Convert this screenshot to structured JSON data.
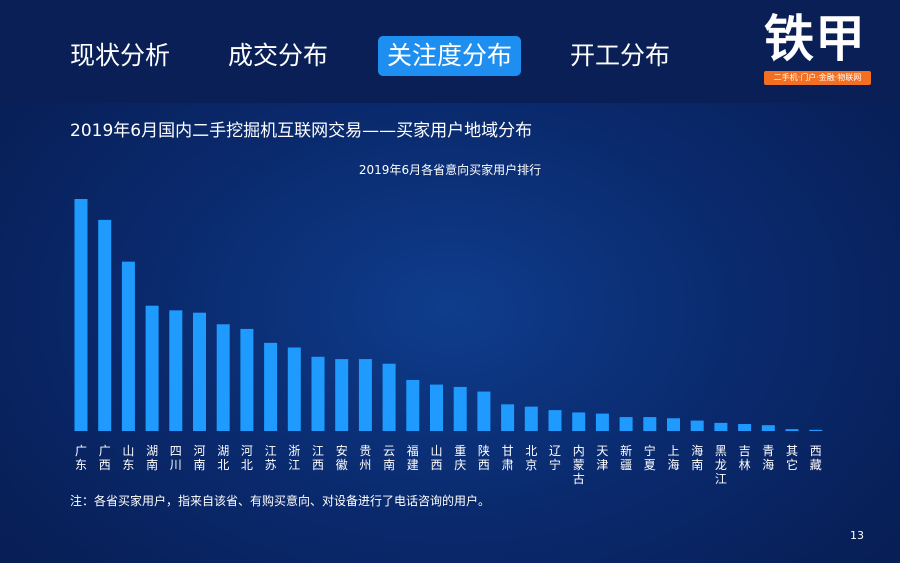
{
  "nav": {
    "tabs": [
      {
        "label": "现状分析"
      },
      {
        "label": "成交分布"
      },
      {
        "label": "关注度分布"
      },
      {
        "label": "开工分布"
      }
    ],
    "active_tab": 2
  },
  "logo": {
    "text": "铁甲",
    "tagline": "二手机·门户·金融·物联网",
    "accent_color": "#f36f21"
  },
  "page": {
    "heading": "2019年6月国内二手挖掘机互联网交易——买家用户地域分布",
    "note": "注：各省买家用户，指来自该省、有购买意向、对设备进行了电话咨询的用户。",
    "page_number": "13"
  },
  "colors": {
    "bar": "#1f9bff",
    "active_tab": "#1e8ff0",
    "background": "#0a2a6e"
  },
  "chart_data": {
    "type": "bar",
    "title": "2019年6月各省意向买家用户排行",
    "categories": [
      "广东",
      "广西",
      "山东",
      "湖南",
      "四川",
      "河南",
      "湖北",
      "河北",
      "江苏",
      "浙江",
      "江西",
      "安徽",
      "贵州",
      "云南",
      "福建",
      "山西",
      "重庆",
      "陕西",
      "甘肃",
      "北京",
      "辽宁",
      "内蒙古",
      "天津",
      "新疆",
      "宁夏",
      "上海",
      "海南",
      "黑龙江",
      "吉林",
      "青海",
      "其它",
      "西藏"
    ],
    "values": [
      100,
      91,
      73,
      54,
      52,
      51,
      46,
      44,
      38,
      36,
      32,
      31,
      31,
      29,
      22,
      20,
      19,
      17,
      11.5,
      10.5,
      9,
      8,
      7.5,
      6,
      6,
      5.5,
      4.5,
      3.5,
      3,
      2.5,
      0.8,
      0.5
    ],
    "ylim": [
      0,
      100
    ],
    "grid": false,
    "legend": "none",
    "xlabel": "",
    "ylabel": ""
  }
}
